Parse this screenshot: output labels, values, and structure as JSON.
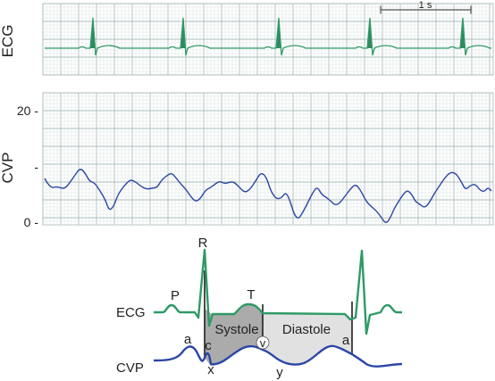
{
  "ecg_strip": {
    "label": "ECG",
    "scale_bar_label": "1 s"
  },
  "cvp_strip": {
    "label": "CVP",
    "y_ticks": [
      "20 -",
      "-",
      "0 -"
    ],
    "y_range_mmHg": [
      0,
      20
    ]
  },
  "diagram": {
    "ecg_label": "ECG",
    "cvp_label": "CVP",
    "wave_labels": {
      "p": "P",
      "r": "R",
      "t": "T",
      "a1": "a",
      "c": "c",
      "x": "x",
      "v": "v",
      "y": "y",
      "a2": "a"
    },
    "phase_labels": {
      "systole": "Systole",
      "diastole": "Diastole"
    }
  },
  "colors": {
    "ecg_trace": "#2e9a66",
    "ecg_spike_fill": "#2f8a5e",
    "cvp_trace": "#2b46a5",
    "grid_minor": "#dde3e3",
    "grid_major": "#aebcbc",
    "systole_fill": "#ababab",
    "diastole_fill": "#e1e1e1",
    "axis": "#666666"
  }
}
